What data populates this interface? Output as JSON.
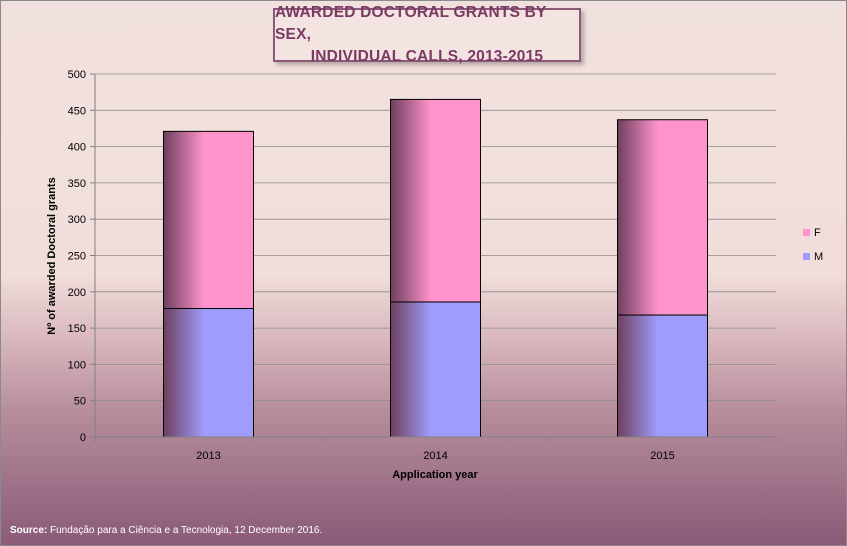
{
  "chart_data": {
    "type": "bar",
    "stacked": true,
    "title_lines": [
      "AWARDED DOCTORAL GRANTS BY SEX,",
      "INDIVIDUAL CALLS, 2013-2015"
    ],
    "xlabel": "Application year",
    "ylabel": "Nº of awarded Doctoral grants",
    "categories": [
      "2013",
      "2014",
      "2015"
    ],
    "series": [
      {
        "name": "M",
        "values": [
          177,
          186,
          168
        ],
        "color": "#a09cfc"
      },
      {
        "name": "F",
        "values": [
          244,
          279,
          269
        ],
        "color": "#ff93cb"
      }
    ],
    "ylim": [
      0,
      500
    ],
    "yticks": [
      "0",
      "50",
      "100",
      "150",
      "200",
      "250",
      "300",
      "350",
      "400",
      "450",
      "500"
    ],
    "grid": true,
    "legend_position": "right",
    "legend": [
      {
        "name": "F",
        "color": "#ff93cb"
      },
      {
        "name": "M",
        "color": "#a09cfc"
      }
    ]
  },
  "source": {
    "label": "Source:",
    "text": " Fundação para a Ciência e a Tecnologia, 12 December 2016."
  }
}
